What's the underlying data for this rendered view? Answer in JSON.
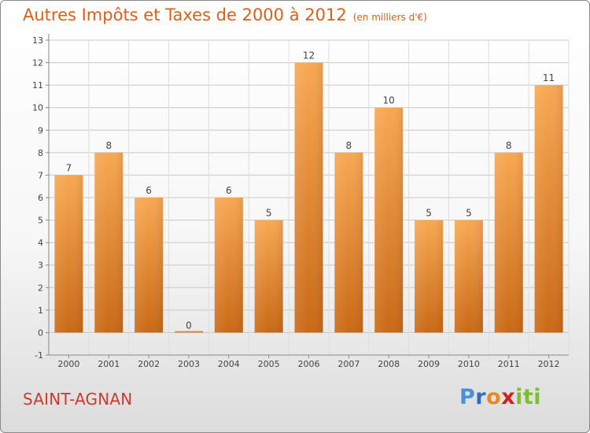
{
  "title": "Autres Impôts et Taxes de 2000 à 2012",
  "unit_note": "(en milliers d'€)",
  "city": "SAINT-AGNAN",
  "logo": {
    "letters": [
      "P",
      "r",
      "o",
      "x",
      "i",
      "t",
      "i"
    ],
    "colors": [
      "#4a90d9",
      "#2a6fc0",
      "#e88a1a",
      "#cc2222",
      "#7fbf2a",
      "#7fbf2a",
      "#7fbf2a"
    ]
  },
  "colors": {
    "bar": "#f0922e",
    "title": "#d9601a",
    "city": "#cc3a2a"
  },
  "chart_data": {
    "type": "bar",
    "categories": [
      "2000",
      "2001",
      "2002",
      "2003",
      "2004",
      "2005",
      "2006",
      "2007",
      "2008",
      "2009",
      "2010",
      "2011",
      "2012"
    ],
    "values": [
      7,
      8,
      6,
      0,
      6,
      5,
      12,
      8,
      10,
      5,
      5,
      8,
      11
    ],
    "ylim": [
      -1,
      13
    ],
    "yticks": [
      -1,
      0,
      1,
      2,
      3,
      4,
      5,
      6,
      7,
      8,
      9,
      10,
      11,
      12,
      13
    ],
    "grid": true
  }
}
